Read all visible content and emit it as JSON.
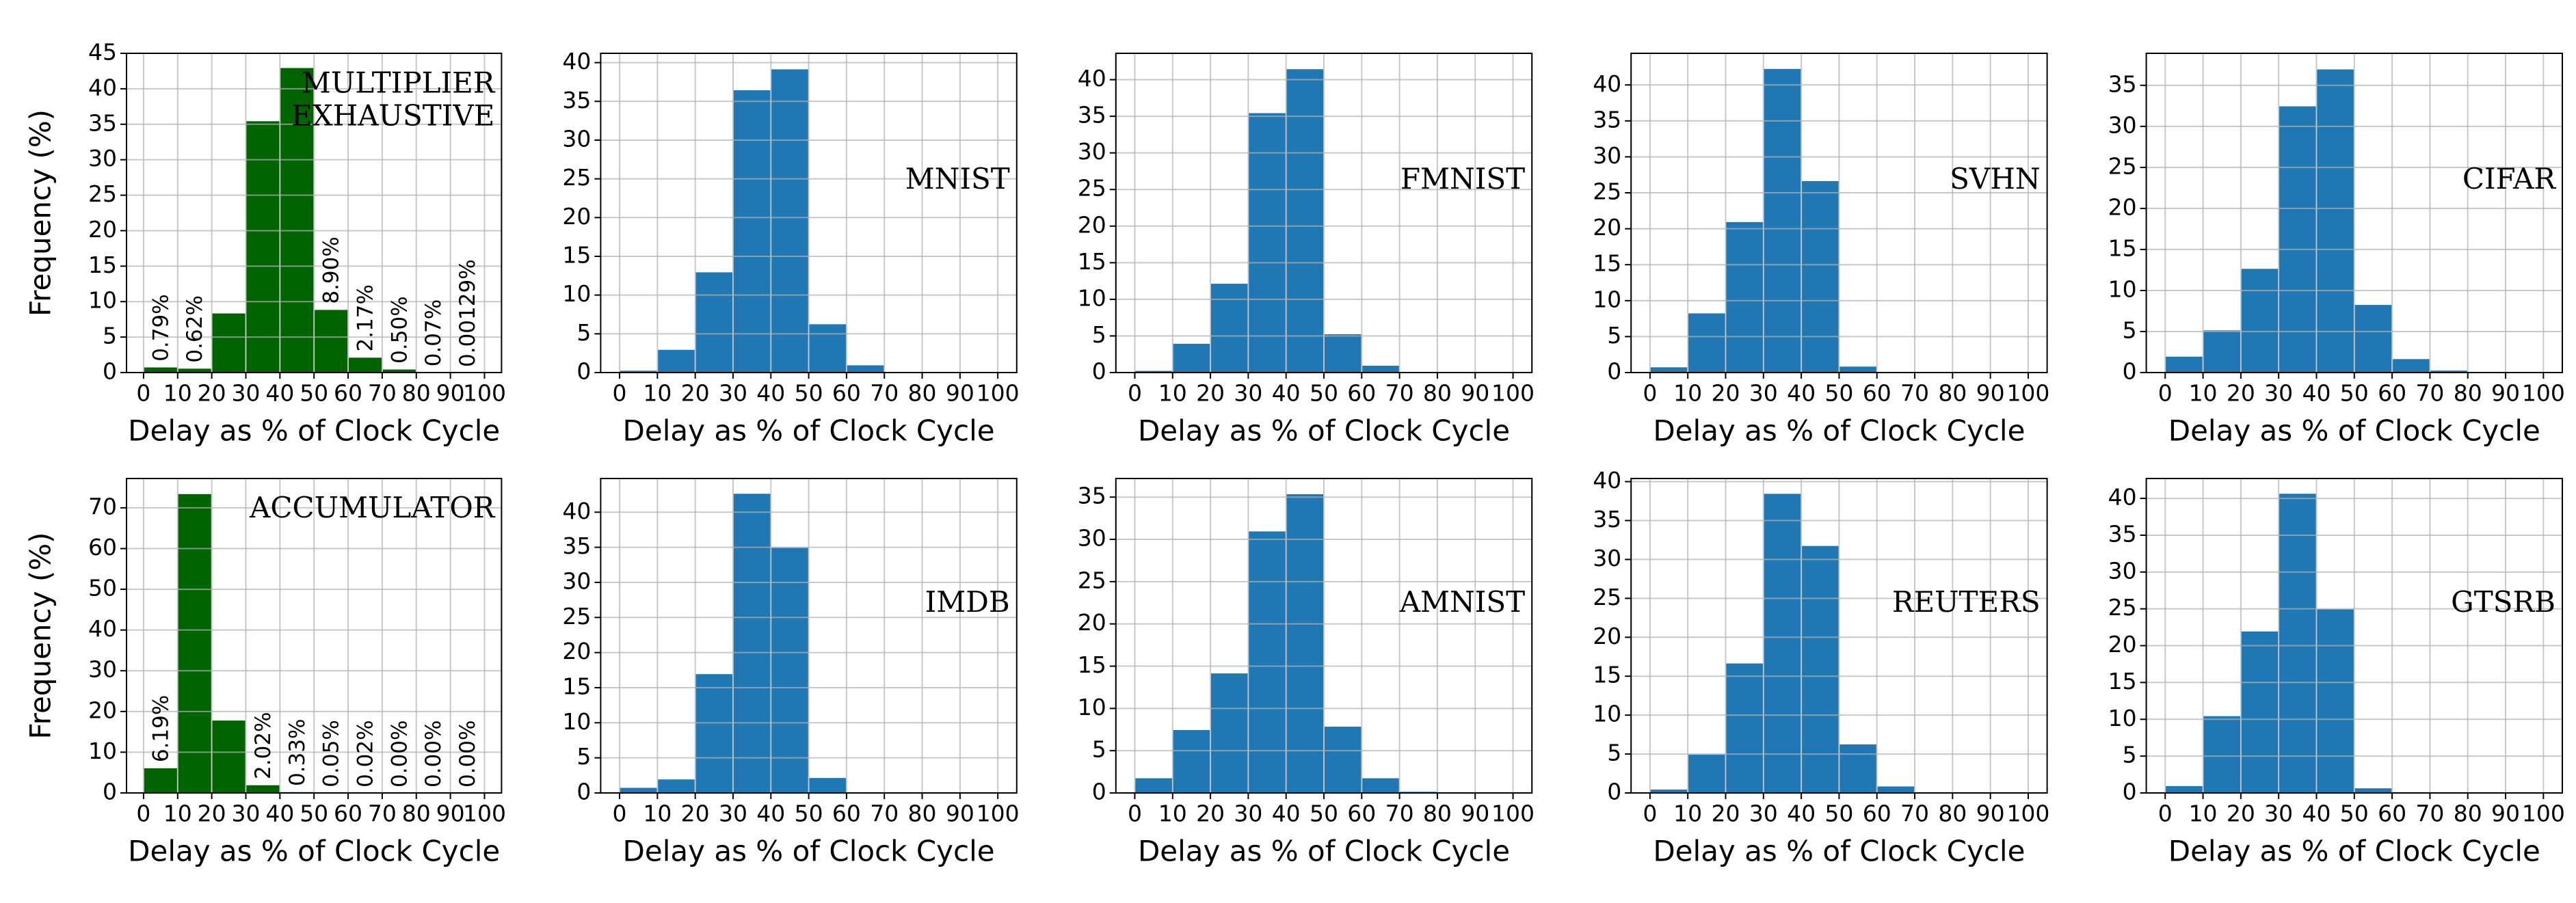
{
  "chart_data": [
    {
      "type": "histogram",
      "annotation": [
        "MULTIPLIER",
        "EXHAUSTIVE"
      ],
      "xlabel": "Delay as % of Clock Cycle",
      "ylabel": "Frequency (%)",
      "bins": [
        0,
        10,
        20,
        30,
        40,
        50,
        60,
        70,
        80,
        90,
        100
      ],
      "counts": [
        0.79,
        0.62,
        8.4,
        35.5,
        43.0,
        8.9,
        2.17,
        0.5,
        0.07,
        0.00129
      ],
      "value_labels": [
        "0.79%",
        "0.62%",
        null,
        null,
        null,
        "8.90%",
        "2.17%",
        "0.50%",
        "0.07%",
        "0.00129%"
      ],
      "color": "#006400",
      "xlim": [
        -5,
        105
      ],
      "ylim": [
        0,
        45
      ],
      "xticks": [
        0,
        10,
        20,
        30,
        40,
        50,
        60,
        70,
        80,
        90,
        100
      ],
      "yticks": [
        0,
        5,
        10,
        15,
        20,
        25,
        30,
        35,
        40,
        45
      ],
      "grid": true
    },
    {
      "type": "histogram",
      "annotation": [
        "MNIST"
      ],
      "xlabel": "Delay as % of Clock Cycle",
      "bins": [
        0,
        10,
        20,
        30,
        40,
        50,
        60,
        70,
        80,
        90,
        100
      ],
      "counts": [
        0.3,
        3.0,
        13.0,
        36.5,
        39.2,
        6.3,
        1.0,
        0.1,
        0,
        0
      ],
      "color": "#1f77b4",
      "xlim": [
        -5,
        105
      ],
      "ylim": [
        0,
        41.2
      ],
      "xticks": [
        0,
        10,
        20,
        30,
        40,
        50,
        60,
        70,
        80,
        90,
        100
      ],
      "yticks": [
        0,
        5,
        10,
        15,
        20,
        25,
        30,
        35,
        40
      ],
      "grid": true
    },
    {
      "type": "histogram",
      "annotation": [
        "FMNIST"
      ],
      "xlabel": "Delay as % of Clock Cycle",
      "bins": [
        0,
        10,
        20,
        30,
        40,
        50,
        60,
        70,
        80,
        90,
        100
      ],
      "counts": [
        0.3,
        4.0,
        12.2,
        35.5,
        41.5,
        5.3,
        1.0,
        0.1,
        0,
        0
      ],
      "color": "#1f77b4",
      "xlim": [
        -5,
        105
      ],
      "ylim": [
        0,
        43.6
      ],
      "xticks": [
        0,
        10,
        20,
        30,
        40,
        50,
        60,
        70,
        80,
        90,
        100
      ],
      "yticks": [
        0,
        5,
        10,
        15,
        20,
        25,
        30,
        35,
        40
      ],
      "grid": true
    },
    {
      "type": "histogram",
      "annotation": [
        "SVHN"
      ],
      "xlabel": "Delay as % of Clock Cycle",
      "bins": [
        0,
        10,
        20,
        30,
        40,
        50,
        60,
        70,
        80,
        90,
        100
      ],
      "counts": [
        0.8,
        8.3,
        21.0,
        42.3,
        26.7,
        0.9,
        0,
        0,
        0,
        0
      ],
      "color": "#1f77b4",
      "xlim": [
        -5,
        105
      ],
      "ylim": [
        0,
        44.4
      ],
      "xticks": [
        0,
        10,
        20,
        30,
        40,
        50,
        60,
        70,
        80,
        90,
        100
      ],
      "yticks": [
        0,
        5,
        10,
        15,
        20,
        25,
        30,
        35,
        40
      ],
      "grid": true
    },
    {
      "type": "histogram",
      "annotation": [
        "CIFAR"
      ],
      "xlabel": "Delay as % of Clock Cycle",
      "bins": [
        0,
        10,
        20,
        30,
        40,
        50,
        60,
        70,
        80,
        90,
        100
      ],
      "counts": [
        2.0,
        5.2,
        12.7,
        32.5,
        37.0,
        8.3,
        1.7,
        0.3,
        0.1,
        0
      ],
      "color": "#1f77b4",
      "xlim": [
        -5,
        105
      ],
      "ylim": [
        0,
        38.9
      ],
      "xticks": [
        0,
        10,
        20,
        30,
        40,
        50,
        60,
        70,
        80,
        90,
        100
      ],
      "yticks": [
        0,
        5,
        10,
        15,
        20,
        25,
        30,
        35
      ],
      "grid": true
    },
    {
      "type": "histogram",
      "annotation": [
        "ACCUMULATOR"
      ],
      "xlabel": "Delay as % of Clock Cycle",
      "ylabel": "Frequency (%)",
      "bins": [
        0,
        10,
        20,
        30,
        40,
        50,
        60,
        70,
        80,
        90,
        100
      ],
      "counts": [
        6.19,
        73.5,
        17.9,
        2.02,
        0.33,
        0.05,
        0.02,
        0.0,
        0.0,
        0.0
      ],
      "value_labels": [
        "6.19%",
        null,
        null,
        "2.02%",
        "0.33%",
        "0.05%",
        "0.02%",
        "0.00%",
        "0.00%",
        "0.00%"
      ],
      "color": "#006400",
      "xlim": [
        -5,
        105
      ],
      "ylim": [
        0,
        77.2
      ],
      "xticks": [
        0,
        10,
        20,
        30,
        40,
        50,
        60,
        70,
        80,
        90,
        100
      ],
      "yticks": [
        0,
        10,
        20,
        30,
        40,
        50,
        60,
        70
      ],
      "grid": true
    },
    {
      "type": "histogram",
      "annotation": [
        "IMDB"
      ],
      "xlabel": "Delay as % of Clock Cycle",
      "bins": [
        0,
        10,
        20,
        30,
        40,
        50,
        60,
        70,
        80,
        90,
        100
      ],
      "counts": [
        0.8,
        2.0,
        17.0,
        42.7,
        35.0,
        2.2,
        0.1,
        0,
        0,
        0
      ],
      "color": "#1f77b4",
      "xlim": [
        -5,
        105
      ],
      "ylim": [
        0,
        44.8
      ],
      "xticks": [
        0,
        10,
        20,
        30,
        40,
        50,
        60,
        70,
        80,
        90,
        100
      ],
      "yticks": [
        0,
        5,
        10,
        15,
        20,
        25,
        30,
        35,
        40
      ],
      "grid": true
    },
    {
      "type": "histogram",
      "annotation": [
        "AMNIST"
      ],
      "xlabel": "Delay as % of Clock Cycle",
      "bins": [
        0,
        10,
        20,
        30,
        40,
        50,
        60,
        70,
        80,
        90,
        100
      ],
      "counts": [
        1.8,
        7.5,
        14.2,
        31.0,
        35.4,
        7.9,
        1.8,
        0.2,
        0.1,
        0
      ],
      "color": "#1f77b4",
      "xlim": [
        -5,
        105
      ],
      "ylim": [
        0,
        37.2
      ],
      "xticks": [
        0,
        10,
        20,
        30,
        40,
        50,
        60,
        70,
        80,
        90,
        100
      ],
      "yticks": [
        0,
        5,
        10,
        15,
        20,
        25,
        30,
        35
      ],
      "grid": true
    },
    {
      "type": "histogram",
      "annotation": [
        "REUTERS"
      ],
      "xlabel": "Delay as % of Clock Cycle",
      "bins": [
        0,
        10,
        20,
        30,
        40,
        50,
        60,
        70,
        80,
        90,
        100
      ],
      "counts": [
        0.5,
        5.0,
        16.7,
        38.5,
        31.8,
        6.3,
        0.9,
        0.1,
        0,
        0
      ],
      "color": "#1f77b4",
      "xlim": [
        -5,
        105
      ],
      "ylim": [
        0,
        40.4
      ],
      "xticks": [
        0,
        10,
        20,
        30,
        40,
        50,
        60,
        70,
        80,
        90,
        100
      ],
      "yticks": [
        0,
        5,
        10,
        15,
        20,
        25,
        30,
        35,
        40
      ],
      "grid": true
    },
    {
      "type": "histogram",
      "annotation": [
        "GTSRB"
      ],
      "xlabel": "Delay as % of Clock Cycle",
      "bins": [
        0,
        10,
        20,
        30,
        40,
        50,
        60,
        70,
        80,
        90,
        100
      ],
      "counts": [
        1.0,
        10.5,
        22.0,
        40.7,
        25.0,
        0.7,
        0,
        0,
        0,
        0
      ],
      "color": "#1f77b4",
      "xlim": [
        -5,
        105
      ],
      "ylim": [
        0,
        42.7
      ],
      "xticks": [
        0,
        10,
        20,
        30,
        40,
        50,
        60,
        70,
        80,
        90,
        100
      ],
      "yticks": [
        0,
        5,
        10,
        15,
        20,
        25,
        30,
        35,
        40
      ],
      "grid": true
    }
  ]
}
